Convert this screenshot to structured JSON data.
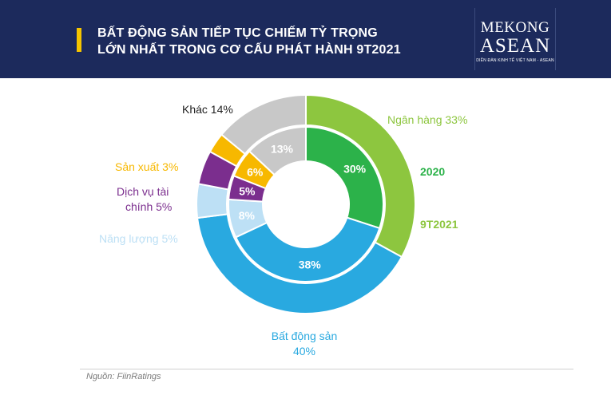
{
  "header": {
    "title_line1": "BẤT ĐỘNG SẢN TIẾP TỤC CHIẾM TỶ TRỌNG",
    "title_line2": "LỚN NHẤT TRONG CƠ CẤU PHÁT HÀNH 9T2021",
    "logo_top": "MEKONG",
    "logo_main": "ASEAN",
    "logo_sub": "DIỄN ĐÀN KINH TẾ VIỆT NAM - ASEAN"
  },
  "chart_data": {
    "type": "donut",
    "categories": [
      "Ngân hàng",
      "Bất động sản",
      "Năng lượng",
      "Dịch vụ tài chính",
      "Sản xuất",
      "Khác"
    ],
    "colors": {
      "outer": [
        "#8dc63f",
        "#29a9e0",
        "#bde0f5",
        "#7b2e8e",
        "#f7b800",
        "#c8c8c8"
      ],
      "inner": [
        "#2cb24a",
        "#29a9e0",
        "#bde0f5",
        "#7b2e8e",
        "#f7b800",
        "#c8c8c8"
      ]
    },
    "series": [
      {
        "name": "2020",
        "ring": "inner",
        "values": [
          30,
          38,
          8,
          5,
          6,
          13
        ],
        "labels": [
          "30%",
          "38%",
          "8%",
          "5%",
          "6%",
          "13%"
        ]
      },
      {
        "name": "9T2021",
        "ring": "outer",
        "values": [
          33,
          40,
          5,
          5,
          3,
          14
        ]
      }
    ],
    "outer_labels": {
      "nganhang": "Ngân hàng 33%",
      "batdongsan_line1": "Bất động sản",
      "batdongsan_line2": "40%",
      "nangluong": "Năng lượng 5%",
      "dichvu_line1": "Dịch vụ tài",
      "dichvu_line2": "chính 5%",
      "sanxuat": "Sản xuất 3%",
      "khac": "Khác 14%"
    },
    "ring_names": {
      "inner": "2020",
      "outer": "9T2021"
    }
  },
  "footer": {
    "source": "Nguồn: FiinRatings"
  }
}
